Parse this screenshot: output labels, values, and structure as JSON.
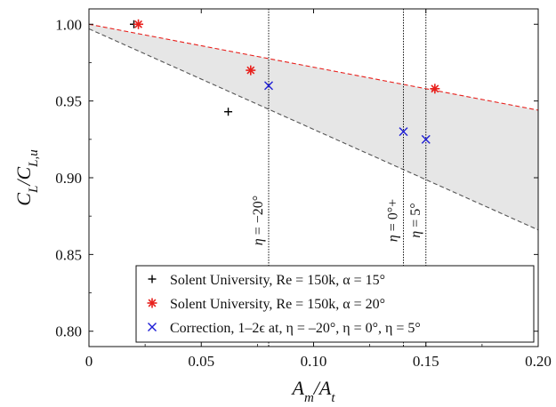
{
  "chart_data": {
    "type": "scatter",
    "xlabel": "A_m/A_t",
    "ylabel": "C_L/C_{L,u}",
    "xlim": [
      0,
      0.2
    ],
    "ylim": [
      0.79,
      1.01
    ],
    "x_ticks": [
      "0",
      "0.05",
      "0.10",
      "0.15",
      "0.20"
    ],
    "y_ticks": [
      "0.80",
      "0.85",
      "0.90",
      "0.95",
      "1.00"
    ],
    "grid": false,
    "legend_position": "bottom-right",
    "series": [
      {
        "name": "Solent University, Re = 150k, α = 15°",
        "marker": "+",
        "color": "#000000",
        "points": [
          {
            "x": 0.02,
            "y": 1.0
          },
          {
            "x": 0.062,
            "y": 0.943
          }
        ]
      },
      {
        "name": "Solent University, Re = 150k, α = 20°",
        "marker": "asterisk",
        "color": "#e8211d",
        "points": [
          {
            "x": 0.022,
            "y": 1.0
          },
          {
            "x": 0.072,
            "y": 0.97
          },
          {
            "x": 0.154,
            "y": 0.958
          }
        ]
      },
      {
        "name": "Correction, 1–2ϵ at, η = –20°, η = 0°, η = 5°",
        "marker": "x",
        "color": "#1f1fd6",
        "points": [
          {
            "x": 0.08,
            "y": 0.96
          },
          {
            "x": 0.14,
            "y": 0.93
          },
          {
            "x": 0.15,
            "y": 0.925
          }
        ]
      }
    ],
    "trend_lines": [
      {
        "color": "#e8211d",
        "style": "dashed",
        "points": [
          {
            "x": 0,
            "y": 1.0
          },
          {
            "x": 0.2,
            "y": 0.944
          }
        ]
      },
      {
        "color": "#555555",
        "style": "dashed",
        "points": [
          {
            "x": 0,
            "y": 0.997
          },
          {
            "x": 0.2,
            "y": 0.866
          }
        ]
      }
    ],
    "shaded_band_color": "#e6e6e6",
    "vertical_lines": [
      {
        "x": 0.08,
        "label": "η = −20°"
      },
      {
        "x": 0.14,
        "label": "η = 0°+"
      },
      {
        "x": 0.15,
        "label": "η = 5°"
      }
    ]
  }
}
